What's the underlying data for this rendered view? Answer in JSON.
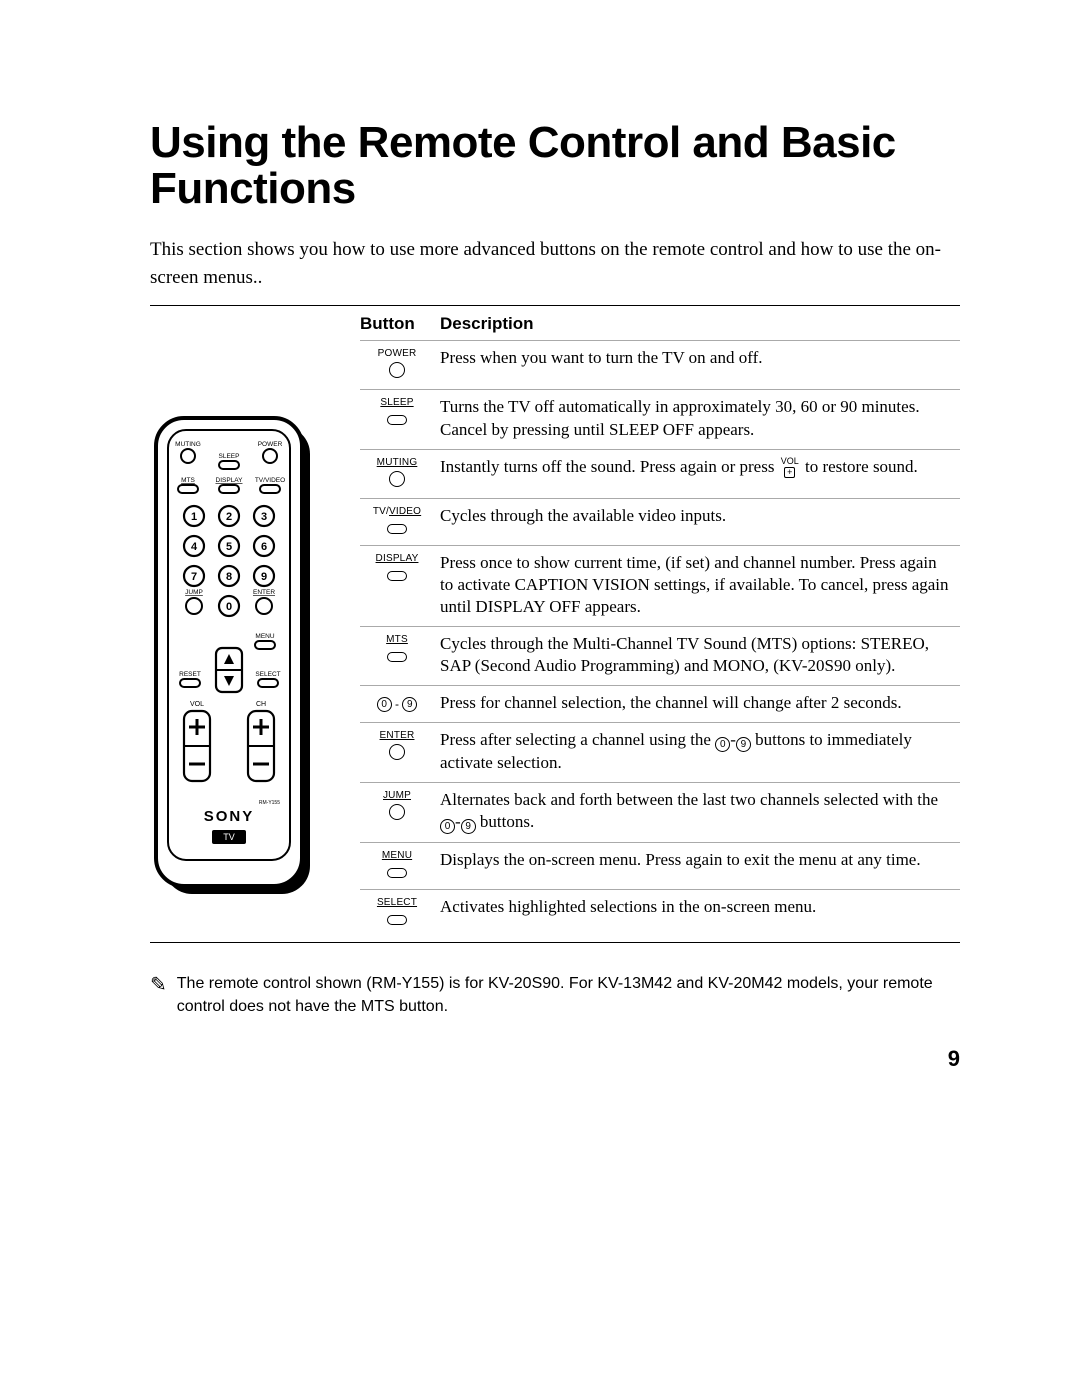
{
  "title": "Using the Remote Control and Basic Functions",
  "intro": "This section shows you how to use more advanced buttons on the remote control and how to use the on-screen menus..",
  "tableHeaders": {
    "button": "Button",
    "description": "Description"
  },
  "rows": [
    {
      "label": "POWER",
      "underline": false,
      "icon": "circle",
      "desc": "Press when you want to turn the TV on and off."
    },
    {
      "label": "SLEEP",
      "underline": true,
      "icon": "pill",
      "desc": "Turns the TV off automatically in approximately 30, 60 or 90 minutes. Cancel by pressing until SLEEP OFF appears."
    },
    {
      "label": "MUTING",
      "underline": true,
      "icon": "circle",
      "desc_parts": [
        "Instantly turns off the sound. Press again or press ",
        {
          "type": "volplus"
        },
        " to restore sound."
      ]
    },
    {
      "label": "TV/VIDEO",
      "underline": "last",
      "icon": "pill",
      "desc": "Cycles through the available video inputs."
    },
    {
      "label": "DISPLAY",
      "underline": true,
      "icon": "pill",
      "desc": "Press once to show current time, (if set) and channel number. Press again to activate CAPTION VISION settings, if available. To cancel, press again until DISPLAY OFF appears."
    },
    {
      "label": "MTS",
      "underline": true,
      "icon": "pill",
      "desc": "Cycles through the Multi-Channel TV Sound (MTS) options: STEREO, SAP (Second Audio Programming) and MONO, (KV-20S90 only)."
    },
    {
      "label_type": "numrange",
      "desc": "Press for channel selection, the channel will change after 2 seconds."
    },
    {
      "label": "ENTER",
      "underline": true,
      "icon": "circle",
      "desc_parts": [
        "Press after selecting a channel using the ",
        {
          "type": "num",
          "v": "0"
        },
        "-",
        {
          "type": "num",
          "v": "9"
        },
        " buttons to immediately activate selection."
      ]
    },
    {
      "label": "JUMP",
      "underline": true,
      "icon": "circle",
      "desc_parts": [
        "Alternates back and forth between the last two channels selected with the ",
        {
          "type": "num",
          "v": "0"
        },
        "-",
        {
          "type": "num",
          "v": "9"
        },
        " buttons."
      ]
    },
    {
      "label": "MENU",
      "underline": true,
      "icon": "pill",
      "desc": "Displays the on-screen menu. Press again to exit the menu at any time."
    },
    {
      "label": "SELECT",
      "underline": true,
      "icon": "pill",
      "desc": "Activates highlighted selections in the on-screen menu."
    }
  ],
  "footnote": "The remote control shown (RM-Y155) is for KV-20S90. For KV-13M42 and KV-20M42 models, your remote control does not have the MTS button.",
  "pageNumber": "9",
  "remote": {
    "labels": {
      "muting": "MUTING",
      "power": "POWER",
      "sleep": "SLEEP",
      "mts": "MTS",
      "display": "DISPLAY",
      "tvvideo": "TV/VIDEO",
      "jump": "JUMP",
      "enter": "ENTER",
      "menu": "MENU",
      "reset": "RESET",
      "select": "SELECT",
      "vol": "VOL",
      "ch": "CH",
      "model": "RM-Y155",
      "brand": "SONY",
      "tv": "TV"
    }
  }
}
